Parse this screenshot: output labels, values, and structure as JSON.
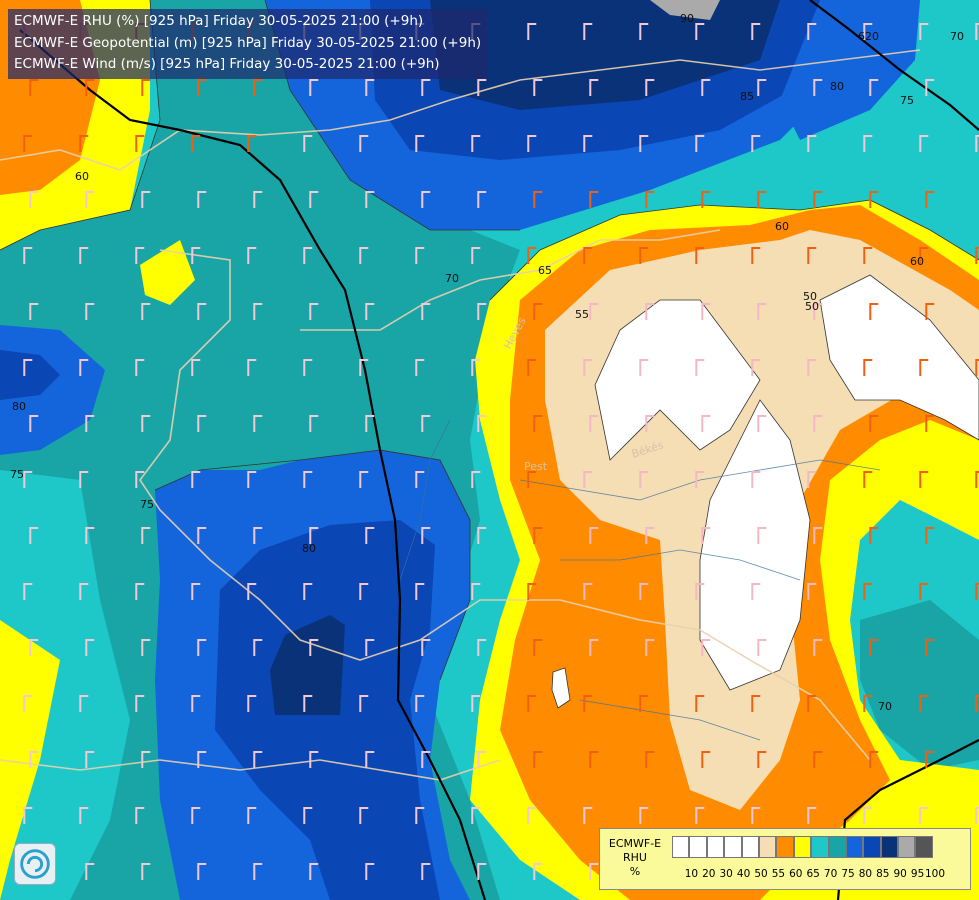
{
  "header": {
    "line1": "ECMWF-E RHU (%) [925 hPa] Friday 30-05-2025 21:00 (+9h)",
    "line2": "ECMWF-E Geopotential (m) [925 hPa] Friday 30-05-2025 21:00 (+9h)",
    "line3": "ECMWF-E Wind (m/s) [925 hPa] Friday 30-05-2025 21:00 (+9h)"
  },
  "legend": {
    "model": "ECMWF-E",
    "variable": "RHU",
    "unit": "%",
    "colors": [
      "#ffffff",
      "#ffffff",
      "#ffffff",
      "#ffffff",
      "#ffffff",
      "#f5deb3",
      "#ff8c00",
      "#ffff00",
      "#1ec8c8",
      "#19a5a5",
      "#1464dc",
      "#0a46b4",
      "#0a3278",
      "#aaaaaa",
      "#555555"
    ],
    "ticks": [
      "10",
      "20",
      "30",
      "40",
      "50",
      "55",
      "60",
      "65",
      "70",
      "75",
      "80",
      "85",
      "90",
      "95",
      "100"
    ]
  },
  "contour_labels": [
    "90",
    "85",
    "80",
    "75",
    "70",
    "65",
    "60",
    "55",
    "50",
    "70",
    "80",
    "75",
    "75",
    "80",
    "60",
    "70",
    "60",
    "50",
    "620"
  ],
  "place_labels": [
    "Heves",
    "Békés",
    "Pest"
  ]
}
